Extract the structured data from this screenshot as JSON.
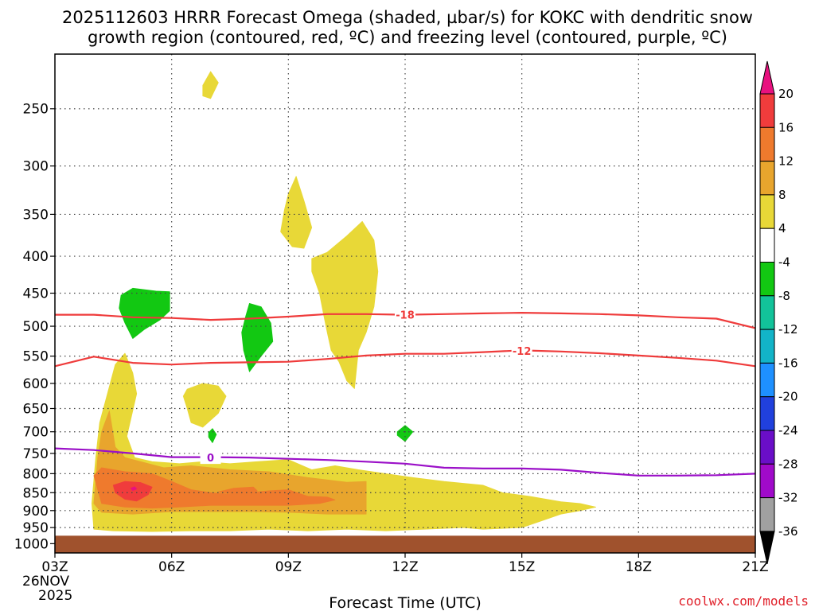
{
  "chart_data": {
    "type": "heatmap",
    "title_line1": "2025112603 HRRR Forecast Omega (shaded, µbar/s) for KOKC with dendritic snow",
    "title_line2": "growth region (contoured, red, ºC) and freezing level (contoured, purple, ºC)",
    "xlabel": "Forecast Time (UTC)",
    "ylabel": "",
    "x_ticks": [
      {
        "hour": 0,
        "label": "03Z"
      },
      {
        "hour": 3,
        "label": "06Z"
      },
      {
        "hour": 6,
        "label": "09Z"
      },
      {
        "hour": 9,
        "label": "12Z"
      },
      {
        "hour": 12,
        "label": "15Z"
      },
      {
        "hour": 15,
        "label": "18Z"
      },
      {
        "hour": 18,
        "label": "21Z"
      }
    ],
    "start_date_line1": "26NOV",
    "start_date_line2": "2025",
    "xlim": [
      0,
      18
    ],
    "y_ticks": [
      {
        "p": 250,
        "label": "250"
      },
      {
        "p": 300,
        "label": "300"
      },
      {
        "p": 350,
        "label": "350"
      },
      {
        "p": 400,
        "label": "400"
      },
      {
        "p": 450,
        "label": "450"
      },
      {
        "p": 500,
        "label": "500"
      },
      {
        "p": 550,
        "label": "550"
      },
      {
        "p": 600,
        "label": "600"
      },
      {
        "p": 650,
        "label": "650"
      },
      {
        "p": 700,
        "label": "700"
      },
      {
        "p": 750,
        "label": "750"
      },
      {
        "p": 800,
        "label": "800"
      },
      {
        "p": 850,
        "label": "850"
      },
      {
        "p": 900,
        "label": "900"
      },
      {
        "p": 950,
        "label": "950"
      },
      {
        "p": 1000,
        "label": "1000"
      }
    ],
    "ylim_hpa": [
      210,
      1030
    ],
    "ground_top_hpa": 975,
    "ground_color": "#a0522d",
    "colorbar": {
      "levels": [
        "20",
        "16",
        "12",
        "8",
        "4",
        "-4",
        "-8",
        "-12",
        "-16",
        "-20",
        "-24",
        "-28",
        "-32",
        "-36"
      ],
      "colors": [
        "#e8117f",
        "#f03c3c",
        "#ef7a2d",
        "#e8a52d",
        "#e8d837",
        "#ffffff",
        "#12c812",
        "#12c39a",
        "#12b4c8",
        "#1e90ff",
        "#2040dd",
        "#6a0ec8",
        "#a00aca",
        "#a0a0a0",
        "#000000"
      ]
    },
    "omega_regions": [
      {
        "level": "4 to 8",
        "color": "#e8d837",
        "points": [
          [
            0.95,
            880
          ],
          [
            1.05,
            760
          ],
          [
            1.15,
            680
          ],
          [
            1.35,
            620
          ],
          [
            1.55,
            565
          ],
          [
            1.8,
            545
          ],
          [
            2.0,
            580
          ],
          [
            2.1,
            620
          ],
          [
            1.85,
            710
          ],
          [
            2.05,
            760
          ],
          [
            2.5,
            770
          ],
          [
            3.2,
            775
          ],
          [
            3.8,
            770
          ],
          [
            4.5,
            775
          ],
          [
            5.2,
            770
          ],
          [
            6.0,
            765
          ],
          [
            6.6,
            790
          ],
          [
            7.2,
            780
          ],
          [
            7.8,
            790
          ],
          [
            8.5,
            800
          ],
          [
            9.2,
            810
          ],
          [
            10.0,
            820
          ],
          [
            11.0,
            830
          ],
          [
            11.5,
            850
          ],
          [
            12.2,
            860
          ],
          [
            13.0,
            875
          ],
          [
            13.5,
            880
          ],
          [
            13.9,
            890
          ],
          [
            13.5,
            900
          ],
          [
            13.0,
            910
          ],
          [
            12.5,
            930
          ],
          [
            12.0,
            950
          ],
          [
            11.0,
            955
          ],
          [
            10.5,
            950
          ],
          [
            9.5,
            955
          ],
          [
            8.5,
            960
          ],
          [
            7.5,
            955
          ],
          [
            6.5,
            960
          ],
          [
            5.5,
            955
          ],
          [
            4.5,
            960
          ],
          [
            3.5,
            960
          ],
          [
            2.5,
            962
          ],
          [
            1.5,
            960
          ],
          [
            1.0,
            955
          ]
        ]
      },
      {
        "level": "4 to 8",
        "color": "#e8d837",
        "points": [
          [
            3.4,
            611
          ],
          [
            3.8,
            600
          ],
          [
            4.2,
            605
          ],
          [
            4.4,
            625
          ],
          [
            4.2,
            660
          ],
          [
            3.8,
            690
          ],
          [
            3.5,
            680
          ],
          [
            3.4,
            650
          ],
          [
            3.3,
            625
          ]
        ]
      },
      {
        "level": "4 to 8",
        "color": "#e8d837",
        "points": [
          [
            6.0,
            328
          ],
          [
            6.2,
            310
          ],
          [
            6.4,
            335
          ],
          [
            6.6,
            365
          ],
          [
            6.4,
            390
          ],
          [
            6.1,
            388
          ],
          [
            5.8,
            370
          ],
          [
            5.9,
            345
          ]
        ]
      },
      {
        "level": "4 to 8",
        "color": "#e8d837",
        "points": [
          [
            6.6,
            403
          ],
          [
            7.0,
            395
          ],
          [
            7.5,
            375
          ],
          [
            7.9,
            358
          ],
          [
            8.2,
            380
          ],
          [
            8.3,
            420
          ],
          [
            8.2,
            470
          ],
          [
            8.0,
            510
          ],
          [
            7.8,
            540
          ],
          [
            7.7,
            610
          ],
          [
            7.5,
            595
          ],
          [
            7.3,
            560
          ],
          [
            7.1,
            540
          ],
          [
            7.0,
            510
          ],
          [
            6.9,
            480
          ],
          [
            6.8,
            450
          ],
          [
            6.6,
            420
          ]
        ]
      },
      {
        "level": "4 to 8",
        "color": "#e8d837",
        "points": [
          [
            3.8,
            232
          ],
          [
            4.0,
            222
          ],
          [
            4.2,
            230
          ],
          [
            4.0,
            242
          ],
          [
            3.8,
            240
          ]
        ]
      },
      {
        "level": "8 to 12",
        "color": "#e8a52d",
        "points": [
          [
            1.0,
            880
          ],
          [
            1.1,
            760
          ],
          [
            1.2,
            700
          ],
          [
            1.4,
            655
          ],
          [
            1.55,
            735
          ],
          [
            1.8,
            760
          ],
          [
            2.2,
            770
          ],
          [
            2.8,
            785
          ],
          [
            3.5,
            780
          ],
          [
            4.5,
            790
          ],
          [
            5.5,
            795
          ],
          [
            6.5,
            810
          ],
          [
            7.5,
            822
          ],
          [
            8.0,
            820
          ],
          [
            8.0,
            910
          ],
          [
            7.0,
            910
          ],
          [
            6.0,
            905
          ],
          [
            5.0,
            903
          ],
          [
            4.0,
            903
          ],
          [
            3.0,
            903
          ],
          [
            2.0,
            910
          ],
          [
            1.2,
            905
          ]
        ]
      },
      {
        "level": "12 to 16",
        "color": "#ef7a2d",
        "points": [
          [
            1.0,
            805
          ],
          [
            1.2,
            785
          ],
          [
            1.8,
            795
          ],
          [
            2.5,
            800
          ],
          [
            3.0,
            820
          ],
          [
            3.5,
            842
          ],
          [
            4.0,
            850
          ],
          [
            4.5,
            854
          ],
          [
            5.0,
            850
          ],
          [
            5.5,
            845
          ],
          [
            6.0,
            842
          ],
          [
            6.5,
            860
          ],
          [
            7.0,
            862
          ],
          [
            7.2,
            870
          ],
          [
            6.8,
            880
          ],
          [
            6.0,
            885
          ],
          [
            5.0,
            885
          ],
          [
            4.0,
            885
          ],
          [
            3.2,
            890
          ],
          [
            2.5,
            893
          ],
          [
            1.8,
            890
          ],
          [
            1.2,
            880
          ]
        ]
      },
      {
        "level": "12 to 16",
        "color": "#ef7a2d",
        "points": [
          [
            4.2,
            848
          ],
          [
            4.6,
            838
          ],
          [
            5.1,
            835
          ],
          [
            5.2,
            845
          ],
          [
            5.0,
            858
          ],
          [
            4.5,
            852
          ]
        ]
      },
      {
        "level": "16 to 20",
        "color": "#f03c3c",
        "points": [
          [
            1.5,
            830
          ],
          [
            1.8,
            820
          ],
          [
            2.2,
            823
          ],
          [
            2.5,
            835
          ],
          [
            2.4,
            855
          ],
          [
            2.1,
            873
          ],
          [
            1.8,
            868
          ],
          [
            1.55,
            850
          ]
        ]
      },
      {
        "level": "20+",
        "color": "#e8117f",
        "points": [
          [
            1.95,
            838
          ],
          [
            2.05,
            834
          ],
          [
            2.1,
            840
          ],
          [
            2.0,
            844
          ]
        ]
      },
      {
        "level": "-4 to -8",
        "color": "#12c812",
        "points": [
          [
            1.7,
            453
          ],
          [
            2.0,
            443
          ],
          [
            2.6,
            447
          ],
          [
            2.95,
            448
          ],
          [
            2.95,
            476
          ],
          [
            2.7,
            490
          ],
          [
            2.3,
            505
          ],
          [
            2.0,
            520
          ],
          [
            1.8,
            495
          ],
          [
            1.65,
            472
          ]
        ]
      },
      {
        "level": "-4 to -8",
        "color": "#12c812",
        "points": [
          [
            4.9,
            485
          ],
          [
            5.0,
            465
          ],
          [
            5.3,
            470
          ],
          [
            5.55,
            495
          ],
          [
            5.6,
            525
          ],
          [
            5.3,
            550
          ],
          [
            5.0,
            578
          ],
          [
            4.85,
            540
          ],
          [
            4.8,
            510
          ]
        ]
      },
      {
        "level": "-4 to -8",
        "color": "#12c812",
        "points": [
          [
            3.95,
            702
          ],
          [
            4.05,
            693
          ],
          [
            4.15,
            706
          ],
          [
            4.05,
            725
          ],
          [
            3.95,
            712
          ]
        ]
      },
      {
        "level": "-4 to -8",
        "color": "#12c812",
        "points": [
          [
            8.8,
            700
          ],
          [
            9.0,
            686
          ],
          [
            9.2,
            700
          ],
          [
            9.0,
            722
          ],
          [
            8.8,
            708
          ]
        ]
      }
    ],
    "contours": [
      {
        "label": "-18",
        "kind": "dendritic",
        "color": "#ef3b3b",
        "label_at": [
          9.0,
          482
        ],
        "x": [
          0,
          1,
          2,
          3,
          4,
          5,
          6,
          7,
          8,
          9,
          10,
          11,
          12,
          13,
          14,
          15,
          16,
          17,
          18
        ],
        "y": [
          482,
          482,
          486,
          487,
          490,
          488,
          485,
          481,
          481,
          482,
          481,
          480,
          479,
          480,
          481,
          483,
          486,
          488,
          503
        ]
      },
      {
        "label": "-12",
        "kind": "dendritic",
        "color": "#ef3b3b",
        "label_at": [
          12.0,
          541
        ],
        "x": [
          0,
          1,
          2,
          3,
          4,
          5,
          6,
          7,
          8,
          9,
          10,
          11,
          12,
          13,
          14,
          15,
          16,
          17,
          18
        ],
        "y": [
          568,
          551,
          562,
          565,
          562,
          561,
          560,
          555,
          549,
          546,
          546,
          543,
          540,
          542,
          545,
          549,
          553,
          558,
          568
        ]
      },
      {
        "label": "0",
        "kind": "freezing",
        "color": "#9b10c8",
        "label_at": [
          4.0,
          760
        ],
        "x": [
          0,
          1,
          2,
          3,
          4,
          5,
          6,
          7,
          8,
          9,
          10,
          11,
          12,
          13,
          14,
          15,
          16,
          17,
          18
        ],
        "y": [
          738,
          742,
          750,
          759,
          759,
          760,
          763,
          766,
          770,
          775,
          785,
          787,
          787,
          790,
          798,
          805,
          805,
          804,
          800
        ]
      }
    ]
  },
  "credit": "coolwx.com/models"
}
